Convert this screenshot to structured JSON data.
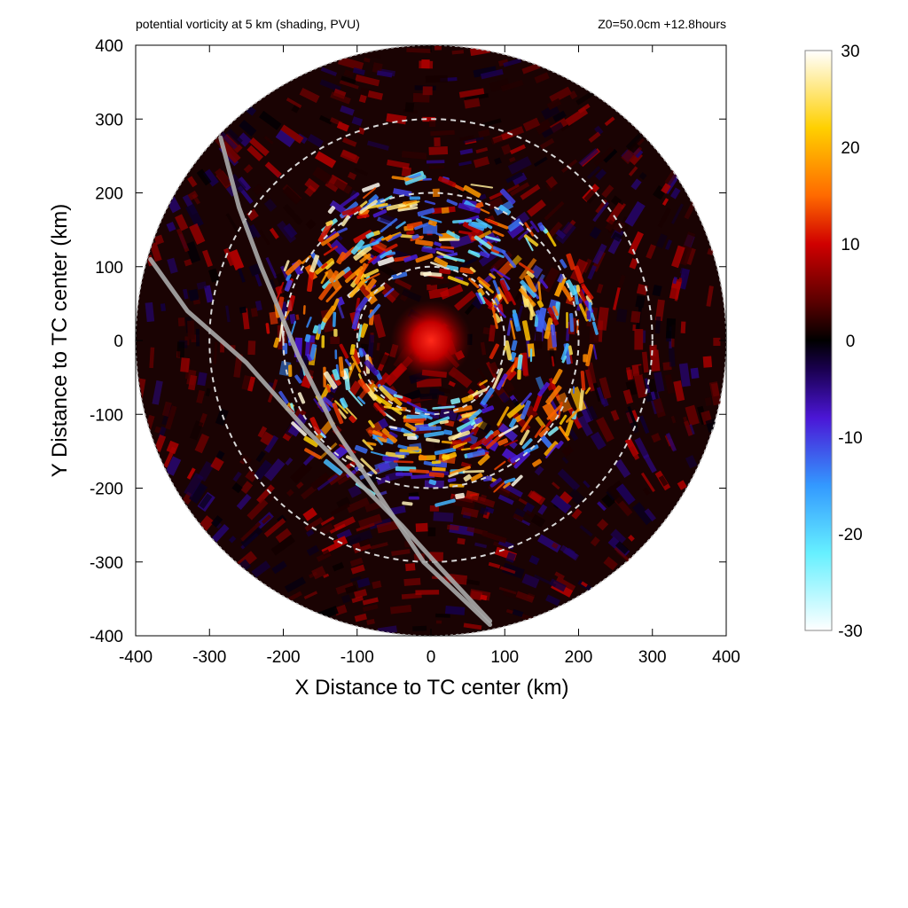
{
  "header": {
    "title_left": "potential vorticity at 5 km (shading, PVU)",
    "title_right": "Z0=50.0cm  +12.8hours"
  },
  "chart_data": {
    "type": "heatmap",
    "title": "potential vorticity at 5 km (shading, PVU)",
    "annotation": "Z0=50.0cm  +12.8hours",
    "xlabel": "X Distance to TC center (km)",
    "ylabel": "Y Distance to TC center (km)",
    "xlim": [
      -400,
      400
    ],
    "ylim": [
      -400,
      400
    ],
    "x_ticks": [
      -400,
      -300,
      -200,
      -100,
      0,
      100,
      200,
      300,
      400
    ],
    "y_ticks": [
      -400,
      -300,
      -200,
      -100,
      0,
      100,
      200,
      300,
      400
    ],
    "domain_radius_km": 400,
    "range_rings_km": [
      100,
      200,
      300
    ],
    "colorbar": {
      "min": -30,
      "max": 30,
      "ticks": [
        30,
        20,
        10,
        0,
        -10,
        -20,
        -30
      ],
      "stops": [
        {
          "value": -30,
          "color": "#ffffff"
        },
        {
          "value": -22,
          "color": "#66f0ff"
        },
        {
          "value": -15,
          "color": "#3399ff"
        },
        {
          "value": -8,
          "color": "#4b16d6"
        },
        {
          "value": -3,
          "color": "#1a0050"
        },
        {
          "value": 0,
          "color": "#000000"
        },
        {
          "value": 4,
          "color": "#5a0000"
        },
        {
          "value": 10,
          "color": "#d00000"
        },
        {
          "value": 15,
          "color": "#ff6a00"
        },
        {
          "value": 22,
          "color": "#ffd000"
        },
        {
          "value": 30,
          "color": "#ffffff"
        }
      ]
    },
    "flight_tracks": [
      {
        "points": [
          [
            -285,
            275
          ],
          [
            -260,
            180
          ],
          [
            -230,
            100
          ],
          [
            -180,
            -20
          ],
          [
            -130,
            -120
          ],
          [
            -70,
            -210
          ],
          [
            -10,
            -300
          ],
          [
            80,
            -385
          ]
        ]
      },
      {
        "points": [
          [
            -380,
            110
          ],
          [
            -330,
            40
          ],
          [
            -250,
            -30
          ],
          [
            -170,
            -120
          ],
          [
            -100,
            -190
          ],
          [
            -40,
            -250
          ],
          [
            10,
            -305
          ],
          [
            80,
            -380
          ]
        ]
      }
    ]
  }
}
